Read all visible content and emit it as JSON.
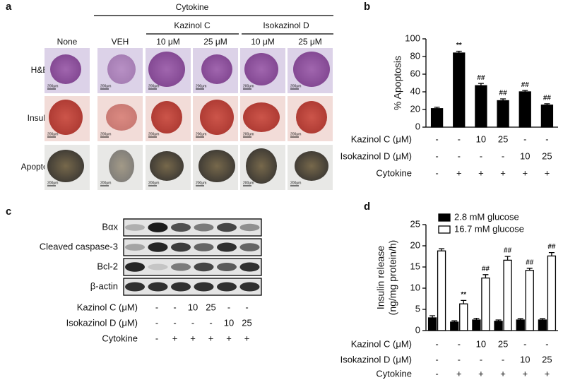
{
  "panel_a": {
    "label": "a",
    "group": "Cytokine",
    "subgroups": [
      "Kazinol C",
      "Isokazinol D"
    ],
    "columns": [
      "None",
      "VEH",
      "10 μM",
      "25 μM",
      "10 μM",
      "25 μM"
    ],
    "rows": [
      "H&E",
      "Insulin",
      "Apoptosis"
    ],
    "scale_bar": "200μm"
  },
  "panel_c": {
    "label": "c",
    "blots": [
      "Bαx",
      "Cleaved caspase-3",
      "Bcl-2",
      "β-actin"
    ],
    "treatments": [
      {
        "label": "Kazinol C (μM)",
        "cells": [
          "-",
          "-",
          "10",
          "25",
          "-",
          "-"
        ]
      },
      {
        "label": "Isokazinol D (μM)",
        "cells": [
          "-",
          "-",
          "-",
          "-",
          "10",
          "25"
        ]
      },
      {
        "label": "Cytokine",
        "cells": [
          "-",
          "+",
          "+",
          "+",
          "+",
          "+"
        ]
      }
    ]
  },
  "chart_data": [
    {
      "type": "bar",
      "panel_label": "b",
      "ylabel": [
        "% Apoptosis"
      ],
      "values": [
        21,
        84,
        47,
        30,
        40,
        25
      ],
      "errors": [
        1.5,
        2,
        2.5,
        2,
        1.5,
        1.5
      ],
      "annotations": [
        null,
        "**",
        "##",
        "##",
        "##",
        "##"
      ],
      "color": "#000000",
      "ylim": [
        0,
        100
      ],
      "yticks": [
        0,
        20,
        40,
        60,
        80,
        100
      ],
      "treatments": [
        {
          "label": "Kazinol C (μM)",
          "cells": [
            "-",
            "-",
            "10",
            "25",
            "-",
            "-"
          ]
        },
        {
          "label": "Isokazinol D (μM)",
          "cells": [
            "-",
            "-",
            "-",
            "-",
            "10",
            "25"
          ]
        },
        {
          "label": "Cytokine",
          "cells": [
            "-",
            "+",
            "+",
            "+",
            "+",
            "+"
          ]
        }
      ]
    },
    {
      "type": "bar",
      "panel_label": "d",
      "ylabel": [
        "Insulin release",
        "(ng/mg protein/h)"
      ],
      "series": [
        {
          "name": "2.8 mM glucose",
          "color": "#000000",
          "values": [
            3,
            2,
            2.5,
            2.2,
            2.5,
            2.5
          ],
          "errors": [
            0.5,
            0.3,
            0.4,
            0.3,
            0.3,
            0.3
          ]
        },
        {
          "name": "16.7 mM glucose",
          "color": "#ffffff",
          "values": [
            18.8,
            6.3,
            12.4,
            16.6,
            14.2,
            17.6
          ],
          "errors": [
            0.5,
            0.8,
            0.8,
            0.9,
            0.5,
            0.8
          ],
          "annotations": [
            null,
            "**",
            "##",
            "##",
            "##",
            "##"
          ]
        }
      ],
      "ylim": [
        0,
        25
      ],
      "yticks": [
        0,
        5,
        10,
        15,
        20,
        25
      ],
      "legend": "top-left",
      "treatments": [
        {
          "label": "Kazinol C (μM)",
          "cells": [
            "-",
            "-",
            "10",
            "25",
            "-",
            "-"
          ]
        },
        {
          "label": "Isokazinol D (μM)",
          "cells": [
            "-",
            "-",
            "-",
            "-",
            "10",
            "25"
          ]
        },
        {
          "label": "Cytokine",
          "cells": [
            "-",
            "+",
            "+",
            "+",
            "+",
            "+"
          ]
        }
      ]
    }
  ]
}
